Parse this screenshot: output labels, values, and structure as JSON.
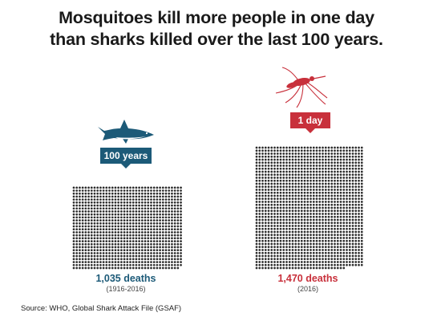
{
  "title_line1": "Mosquitoes kill more people in one day",
  "title_line2": "than sharks killed over the last 100 years.",
  "source": "Source: WHO, Global Shark Attack File (GSAF)",
  "colors": {
    "shark": "#1c5a78",
    "mosquito": "#c8303b",
    "dots": "#2b2b2b"
  },
  "chart_data": {
    "type": "pictogram",
    "title": "Mosquitoes kill more people in one day than sharks killed over the last 100 years.",
    "unit": "deaths (one dot = one death)",
    "series": [
      {
        "animal": "shark",
        "tag": "100 years",
        "value": 1035,
        "value_label": "1,035 deaths",
        "period": "(1916-2016)",
        "color": "#1c5a78",
        "icon": "shark-icon"
      },
      {
        "animal": "mosquito",
        "tag": "1 day",
        "value": 1470,
        "value_label": "1,470 deaths",
        "period": "(2016)",
        "color": "#c8303b",
        "icon": "mosquito-icon"
      }
    ]
  }
}
